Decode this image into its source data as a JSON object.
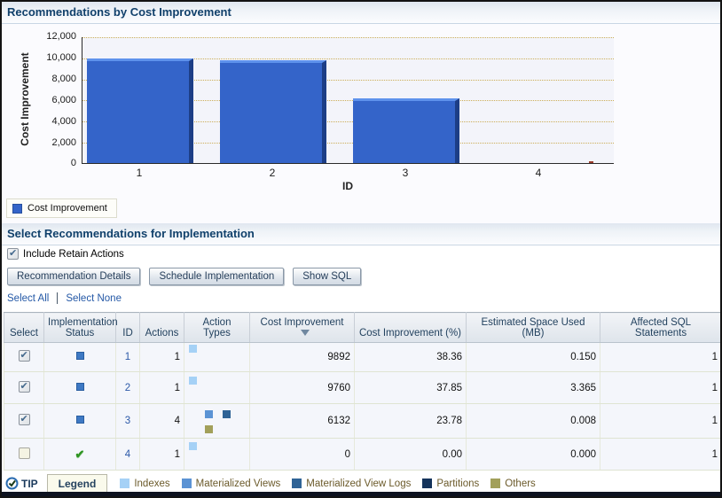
{
  "chart_section": {
    "title": "Recommendations by Cost Improvement",
    "legend_label": "Cost Improvement"
  },
  "chart_data": {
    "type": "bar",
    "title": "Recommendations by Cost Improvement",
    "categories": [
      "1",
      "2",
      "3",
      "4"
    ],
    "series": [
      {
        "name": "Cost Improvement",
        "values": [
          9892,
          9760,
          6132,
          0
        ]
      }
    ],
    "xlabel": "ID",
    "ylabel": "Cost Improvement",
    "ylim": [
      0,
      12000
    ],
    "yticks": [
      "12,000",
      "10,000",
      "8,000",
      "6,000",
      "4,000",
      "2,000",
      "0"
    ],
    "grid": true,
    "legend_position": "bottom-left",
    "bar_color": "#3464C9"
  },
  "table_section": {
    "title": "Select Recommendations for Implementation",
    "include_retain_label": "Include Retain Actions",
    "include_retain_checked": true,
    "buttons": {
      "recommendation_details": "Recommendation Details",
      "schedule_implementation": "Schedule Implementation",
      "show_sql": "Show SQL"
    },
    "links": {
      "select_all": "Select All",
      "select_none": "Select None"
    },
    "table": {
      "columns": {
        "select": "Select",
        "implementation_status": "Implementation Status",
        "id": "ID",
        "actions": "Actions",
        "action_types": "Action Types",
        "cost_improvement": "Cost Improvement",
        "cost_improvement_pct": "Cost Improvement (%)",
        "space_used": "Estimated Space Used (MB)",
        "affected_sql": "Affected SQL Statements"
      },
      "sorted_column": "Cost Improvement",
      "sort_direction": "descending",
      "rows": [
        {
          "selected": true,
          "status": "pending",
          "id": "1",
          "actions": "1",
          "action_types": [
            "indexes"
          ],
          "cost_improvement": "9892",
          "cost_improvement_pct": "38.36",
          "space_used_mb": "0.150",
          "affected_sql": "1"
        },
        {
          "selected": true,
          "status": "pending",
          "id": "2",
          "actions": "1",
          "action_types": [
            "indexes"
          ],
          "cost_improvement": "9760",
          "cost_improvement_pct": "37.85",
          "space_used_mb": "3.365",
          "affected_sql": "1"
        },
        {
          "selected": true,
          "status": "pending",
          "id": "3",
          "actions": "4",
          "action_types": [
            "materialized-views",
            "materialized-view-logs",
            "others"
          ],
          "cost_improvement": "6132",
          "cost_improvement_pct": "23.78",
          "space_used_mb": "0.008",
          "affected_sql": "1"
        },
        {
          "selected": false,
          "status": "implemented",
          "id": "4",
          "actions": "1",
          "action_types": [
            "indexes"
          ],
          "cost_improvement": "0",
          "cost_improvement_pct": "0.00",
          "space_used_mb": "0.000",
          "affected_sql": "1"
        }
      ]
    }
  },
  "footer": {
    "tip_label": "TIP",
    "legend_label": "Legend",
    "legend_items": [
      {
        "label": "Indexes",
        "color": "#A5D1F6"
      },
      {
        "label": "Materialized Views",
        "color": "#5B93D4"
      },
      {
        "label": "Materialized View Logs",
        "color": "#2F6396"
      },
      {
        "label": "Partitions",
        "color": "#14335B"
      },
      {
        "label": "Others",
        "color": "#A2A05A"
      }
    ]
  },
  "colors": {
    "bar_blue": "#3464C9",
    "section_title": "#10406B",
    "link_blue": "#2458A6",
    "status_pending_blue": "#3E79C4",
    "status_implemented_green": "#2F9422",
    "gridline_tan": "#CCAE58"
  }
}
